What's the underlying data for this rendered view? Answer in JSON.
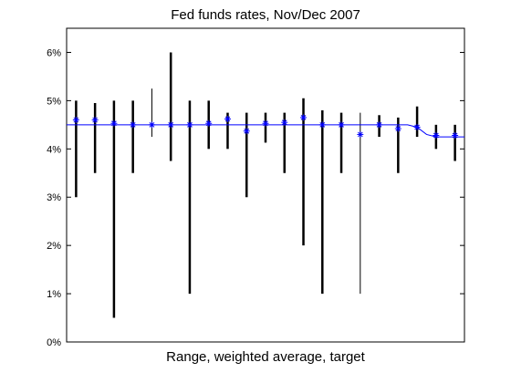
{
  "chart_data": {
    "type": "line",
    "title": "Fed funds rates, Nov/Dec 2007",
    "xlabel": "Range, weighted average, target",
    "ylabel": "",
    "ylim": [
      0,
      6.5
    ],
    "xlim": [
      0.5,
      21.5
    ],
    "y_ticks": [
      0,
      1,
      2,
      3,
      4,
      5,
      6
    ],
    "y_tick_labels": [
      "0%",
      "1%",
      "2%",
      "3%",
      "4%",
      "5%",
      "6%"
    ],
    "grid": false,
    "colors": {
      "range": "#000000",
      "average": "#0000ff",
      "target": "#0000ff"
    },
    "x": [
      1,
      2,
      3,
      4,
      5,
      6,
      7,
      8,
      9,
      10,
      11,
      12,
      13,
      14,
      15,
      16,
      17,
      18,
      19,
      20,
      21
    ],
    "series": [
      {
        "kind": "range",
        "low": [
          3.0,
          3.5,
          0.5,
          3.5,
          4.25,
          3.75,
          1.0,
          4.0,
          4.0,
          3.0,
          4.13,
          3.5,
          2.0,
          1.0,
          3.5,
          1.0,
          4.25,
          3.5,
          4.25,
          4.0,
          3.75
        ],
        "high": [
          5.0,
          4.95,
          5.0,
          5.0,
          5.25,
          6.0,
          5.0,
          5.0,
          4.75,
          4.75,
          4.75,
          4.75,
          5.05,
          4.8,
          4.75,
          4.75,
          4.7,
          4.65,
          4.88,
          4.5,
          4.5
        ],
        "thin": [
          false,
          false,
          false,
          false,
          true,
          false,
          false,
          false,
          false,
          false,
          false,
          false,
          false,
          false,
          false,
          true,
          false,
          false,
          false,
          false,
          false
        ]
      },
      {
        "kind": "average",
        "marker": "*",
        "values": [
          4.6,
          4.6,
          4.53,
          4.5,
          4.5,
          4.5,
          4.5,
          4.53,
          4.62,
          4.37,
          4.53,
          4.55,
          4.65,
          4.5,
          4.5,
          4.3,
          4.5,
          4.42,
          4.45,
          4.28,
          4.28
        ]
      },
      {
        "kind": "target",
        "x": [
          0.5,
          18.5,
          19.0,
          19.5,
          20.0,
          21.5
        ],
        "values": [
          4.5,
          4.5,
          4.45,
          4.3,
          4.25,
          4.25
        ]
      }
    ]
  }
}
